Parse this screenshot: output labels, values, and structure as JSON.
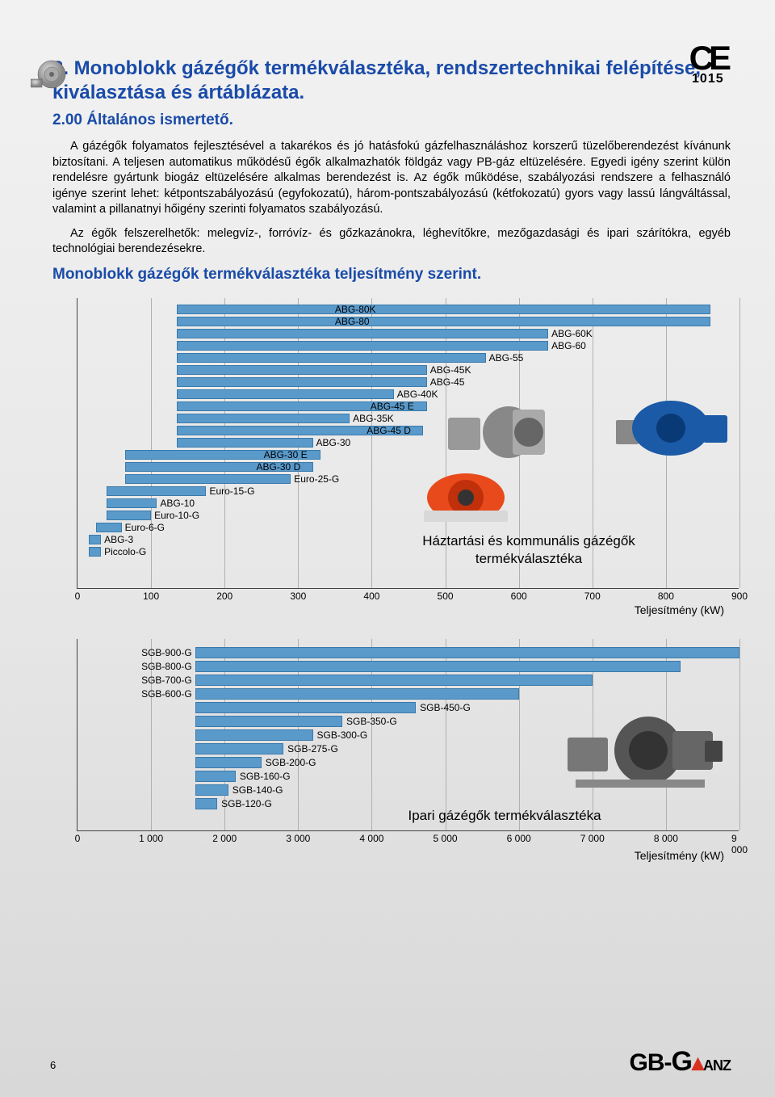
{
  "ce": {
    "mark": "CE",
    "number": "1015"
  },
  "title": "2. Monoblokk gázégők termékválasztéka, rendszertechnikai felépítése, kiválasztása és ártáblázata.",
  "subtitle": "2.00 Általános ismertető.",
  "para1": "A gázégők folyamatos fejlesztésével a takarékos és jó hatásfokú gázfelhasználáshoz korszerű tüzelőberendezést kívánunk biztosítani. A teljesen automatikus működésű égők alkalmazhatók földgáz vagy PB-gáz eltüzelésére. Egyedi igény szerint külön rendelésre gyártunk biogáz eltüzelésére alkalmas berendezést is. Az égők működése, szabályozási rendszere a felhasználó igénye szerint lehet: kétpontszabályozású (egyfokozatú), három-pontszabályozású (kétfokozatú) gyors vagy lassú lángváltással, valamint a pillanatnyi hőigény szerinti folyamatos szabályozású.",
  "para2": "Az égők felszerelhetők: melegvíz-, forróvíz- és gőzkazánokra, léghevítőkre, mezőgazdasági és ipari szárítókra, egyéb technológiai berendezésekre.",
  "section": "Monoblokk gázégők termékválasztéka teljesítmény szerint.",
  "chart1": {
    "type": "bar",
    "title": "Háztartási és kommunális gázégők termékválasztéka",
    "xlabel": "Teljesítmény (kW)",
    "xmax": 900,
    "xtick_step": 100,
    "xticks": [
      "0",
      "100",
      "200",
      "300",
      "400",
      "500",
      "600",
      "700",
      "800",
      "900"
    ],
    "bar_color": "#5a9acb",
    "grid_color": "#b0b0b0",
    "bars": [
      {
        "label": "ABG-80K",
        "start": 135,
        "end": 860,
        "label_pos": "left-edge-inside"
      },
      {
        "label": "ABG-80",
        "start": 135,
        "end": 860,
        "label_pos": "left-edge-inside"
      },
      {
        "label": "ABG-60K",
        "start": 135,
        "end": 640,
        "label_pos": "right"
      },
      {
        "label": "ABG-60",
        "start": 135,
        "end": 640,
        "label_pos": "right"
      },
      {
        "label": "ABG-55",
        "start": 135,
        "end": 555,
        "label_pos": "right"
      },
      {
        "label": "ABG-45K",
        "start": 135,
        "end": 475,
        "label_pos": "right"
      },
      {
        "label": "ABG-45",
        "start": 135,
        "end": 475,
        "label_pos": "right"
      },
      {
        "label": "ABG-40K",
        "start": 135,
        "end": 430,
        "label_pos": "right"
      },
      {
        "label": "ABG-45 E",
        "start": 135,
        "end": 475,
        "label_pos": "right-inner"
      },
      {
        "label": "ABG-35K",
        "start": 135,
        "end": 370,
        "label_pos": "right"
      },
      {
        "label": "ABG-45 D",
        "start": 135,
        "end": 470,
        "label_pos": "right-inner"
      },
      {
        "label": "ABG-30",
        "start": 135,
        "end": 320,
        "label_pos": "right"
      },
      {
        "label": "ABG-30 E",
        "start": 65,
        "end": 330,
        "label_pos": "right-inner"
      },
      {
        "label": "ABG-30 D",
        "start": 65,
        "end": 320,
        "label_pos": "right-inner"
      },
      {
        "label": "Euro-25-G",
        "start": 65,
        "end": 290,
        "label_pos": "right"
      },
      {
        "label": "Euro-15-G",
        "start": 40,
        "end": 175,
        "label_pos": "right"
      },
      {
        "label": "ABG-10",
        "start": 40,
        "end": 108,
        "label_pos": "right"
      },
      {
        "label": "Euro-10-G",
        "start": 40,
        "end": 100,
        "label_pos": "right"
      },
      {
        "label": "Euro-6-G",
        "start": 25,
        "end": 60,
        "label_pos": "right"
      },
      {
        "label": "ABG-3",
        "start": 15,
        "end": 32,
        "label_pos": "right"
      },
      {
        "label": "Piccolo-G",
        "start": 15,
        "end": 32,
        "label_pos": "right"
      }
    ]
  },
  "chart2": {
    "type": "bar",
    "title": "Ipari gázégők termékválasztéka",
    "xlabel": "Teljesítmény (kW)",
    "xmax": 9000,
    "xtick_step": 1000,
    "xticks": [
      "0",
      "1 000",
      "2 000",
      "3 000",
      "4 000",
      "5 000",
      "6 000",
      "7 000",
      "8 000",
      "9 000"
    ],
    "bar_color": "#5a9acb",
    "grid_color": "#b0b0b0",
    "bars": [
      {
        "label": "SGB-900-G",
        "start": 1600,
        "end": 9000,
        "label_pos": "left"
      },
      {
        "label": "SGB-800-G",
        "start": 1600,
        "end": 8200,
        "label_pos": "left"
      },
      {
        "label": "SGB-700-G",
        "start": 1600,
        "end": 7000,
        "label_pos": "left"
      },
      {
        "label": "SGB-600-G",
        "start": 1600,
        "end": 6000,
        "label_pos": "left"
      },
      {
        "label": "SGB-450-G",
        "start": 1600,
        "end": 4600,
        "label_pos": "right"
      },
      {
        "label": "SGB-350-G",
        "start": 1600,
        "end": 3600,
        "label_pos": "right"
      },
      {
        "label": "SGB-300-G",
        "start": 1600,
        "end": 3200,
        "label_pos": "right"
      },
      {
        "label": "SGB-275-G",
        "start": 1600,
        "end": 2800,
        "label_pos": "right"
      },
      {
        "label": "SGB-200-G",
        "start": 1600,
        "end": 2500,
        "label_pos": "right"
      },
      {
        "label": "SGB-160-G",
        "start": 1600,
        "end": 2150,
        "label_pos": "right"
      },
      {
        "label": "SGB-140-G",
        "start": 1600,
        "end": 2050,
        "label_pos": "right"
      },
      {
        "label": "SGB-120-G",
        "start": 1600,
        "end": 1900,
        "label_pos": "right"
      }
    ]
  },
  "page_num": "6",
  "brand": {
    "gb": "GB-",
    "g": "G",
    "anz": "ANZ"
  }
}
